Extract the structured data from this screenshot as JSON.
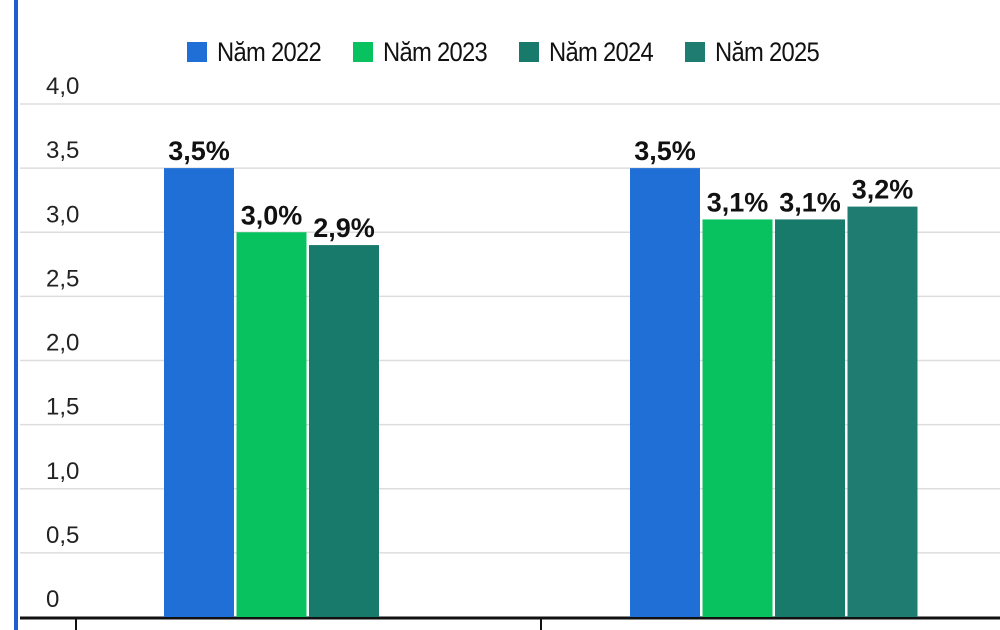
{
  "chart_data": {
    "type": "bar",
    "title": "",
    "xlabel": "",
    "ylabel": "",
    "ylim": [
      0,
      4.0
    ],
    "yticks": [
      "0",
      "0,5",
      "1,0",
      "1,5",
      "2,0",
      "2,5",
      "3,0",
      "3,5",
      "4,0"
    ],
    "ytick_values": [
      0,
      0.5,
      1.0,
      1.5,
      2.0,
      2.5,
      3.0,
      3.5,
      4.0
    ],
    "grid": true,
    "legend_position": "top-center",
    "categories": [
      "",
      ""
    ],
    "series": [
      {
        "name": "Năm 2022",
        "color": "#1f6fd6",
        "values": [
          3.5,
          3.5
        ],
        "labels": [
          "3,5%",
          "3,5%"
        ]
      },
      {
        "name": "Năm 2023",
        "color": "#08c25f",
        "values": [
          3.0,
          3.1
        ],
        "labels": [
          "3,0%",
          "3,1%"
        ]
      },
      {
        "name": "Năm 2024",
        "color": "#177a6a",
        "values": [
          2.9,
          3.1
        ],
        "labels": [
          "2,9%",
          "3,1%"
        ]
      },
      {
        "name": "Năm 2025",
        "color": "#1f7c71",
        "values": [
          null,
          3.2
        ],
        "labels": [
          "",
          "3,2%"
        ]
      }
    ]
  }
}
